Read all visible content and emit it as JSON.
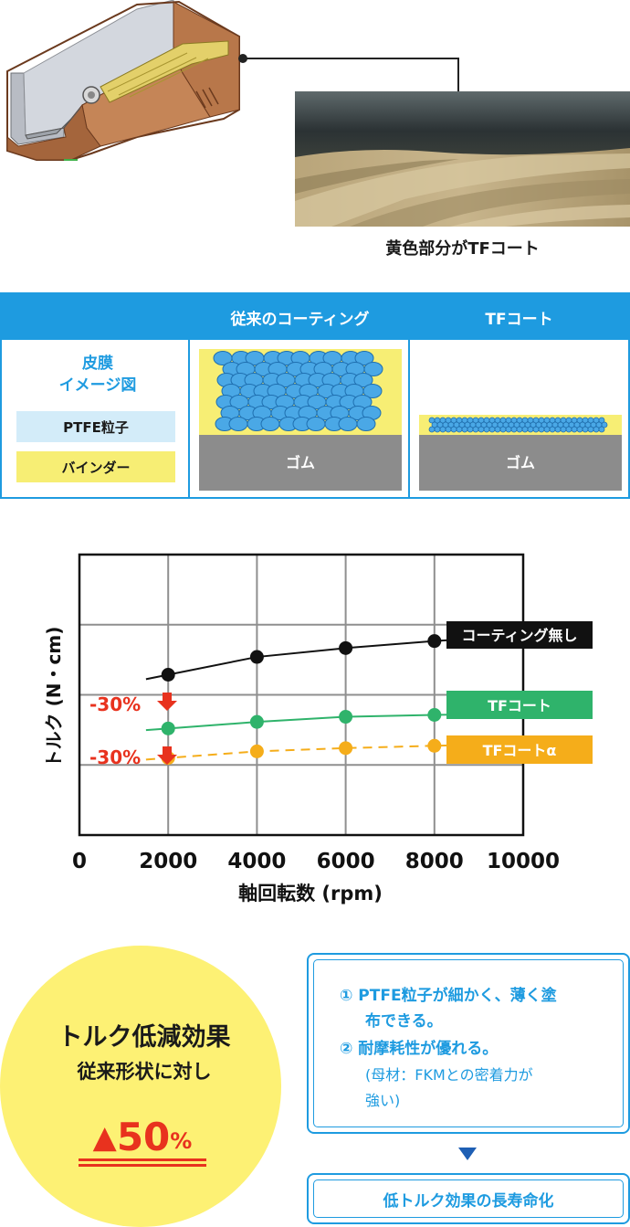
{
  "micrograph": {
    "caption": "黄色部分がTFコート"
  },
  "table": {
    "headers": [
      "従来のコーティング",
      "TFコート"
    ],
    "legend_title_line1": "皮膜",
    "legend_title_line2": "イメージ図",
    "legend_items": [
      "PTFE粒子",
      "バインダー"
    ],
    "rubber_label": "ゴム",
    "colors": {
      "header": "#1e9be0",
      "ptfe": "#4aa8e6",
      "binder": "#f7ee74",
      "rubber": "#8c8c8c"
    }
  },
  "chart_data": {
    "type": "line",
    "xlabel": "軸回転数 (rpm)",
    "ylabel": "トルク (N・cm)",
    "xlim": [
      0,
      10000
    ],
    "x_ticks": [
      0,
      2000,
      4000,
      6000,
      8000,
      10000
    ],
    "grid": true,
    "series": [
      {
        "name": "コーティング無し",
        "style": "solid",
        "color": "#111111",
        "x": [
          2000,
          4000,
          6000,
          8000
        ],
        "y": [
          3.43,
          3.81,
          4.0,
          4.15
        ]
      },
      {
        "name": "TFコート",
        "style": "solid",
        "color": "#2fb36b",
        "x": [
          2000,
          4000,
          6000,
          8000
        ],
        "y": [
          2.28,
          2.42,
          2.53,
          2.57
        ]
      },
      {
        "name": "TFコートα",
        "style": "dashed",
        "color": "#f5ad1a",
        "x": [
          2000,
          4000,
          6000,
          8000
        ],
        "y": [
          1.65,
          1.79,
          1.86,
          1.91
        ]
      }
    ],
    "annotations": [
      "-30%",
      "-30%"
    ]
  },
  "effect": {
    "title": "トルク低減効果",
    "subtitle": "従来形状に対し",
    "value_symbol": "▲",
    "value_number": "50",
    "value_unit": "%"
  },
  "benefits": {
    "item1_line1": "① PTFE粒子が細かく、薄く塗",
    "item1_line2": "布できる。",
    "item2_line1": "② 耐摩耗性が優れる。",
    "item2_note1": "(母材：FKMとの密着力が",
    "item2_note2": "強い)"
  },
  "result": {
    "label": "低トルク効果の長寿命化"
  }
}
